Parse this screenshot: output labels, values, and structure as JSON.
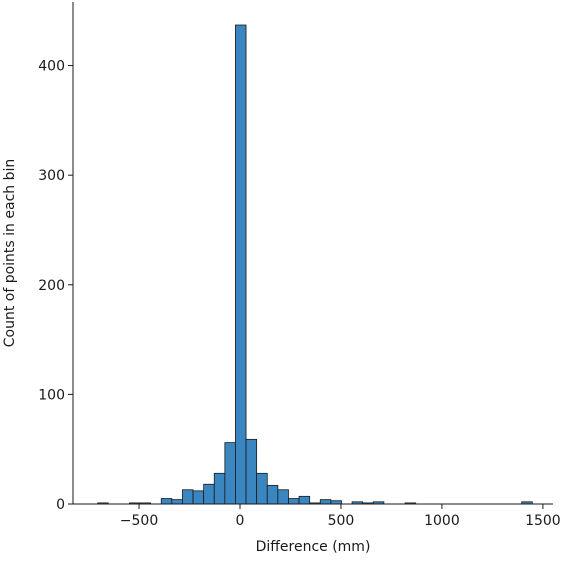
{
  "chart_data": {
    "type": "histogram",
    "xlabel": "Difference (mm)",
    "ylabel": "Count of points in each bin",
    "bins": [
      -705,
      -652.5,
      -600,
      -547.5,
      -495,
      -442.5,
      -390,
      -337.5,
      -285,
      -232.5,
      -180,
      -127.5,
      -75,
      -22.5,
      30,
      82.5,
      135,
      187.5,
      240,
      292.5,
      345,
      397.5,
      450,
      502.5,
      555,
      607.5,
      660,
      712.5,
      765,
      817.5,
      870,
      922.5,
      975,
      1027.5,
      1080,
      1132.5,
      1185,
      1237.5,
      1290,
      1342.5,
      1395,
      1447.5
    ],
    "values": [
      1,
      0,
      0,
      1,
      1,
      0,
      5,
      4,
      13,
      12,
      18,
      28,
      56,
      437,
      59,
      28,
      17,
      13,
      5,
      7,
      1,
      4,
      3,
      0,
      2,
      1,
      2,
      0,
      0,
      1,
      0,
      0,
      0,
      0,
      0,
      0,
      0,
      0,
      0,
      0,
      2
    ],
    "color": "#3a86c0",
    "edgecolor": "#1a1a1a",
    "xlim": [
      -827,
      1550
    ],
    "xticks": [
      {
        "value": -500,
        "label": "−500"
      },
      0,
      500,
      1000,
      1500
    ],
    "ylim": [
      0,
      458
    ],
    "yticks": [
      0,
      100,
      200,
      300,
      400
    ]
  }
}
